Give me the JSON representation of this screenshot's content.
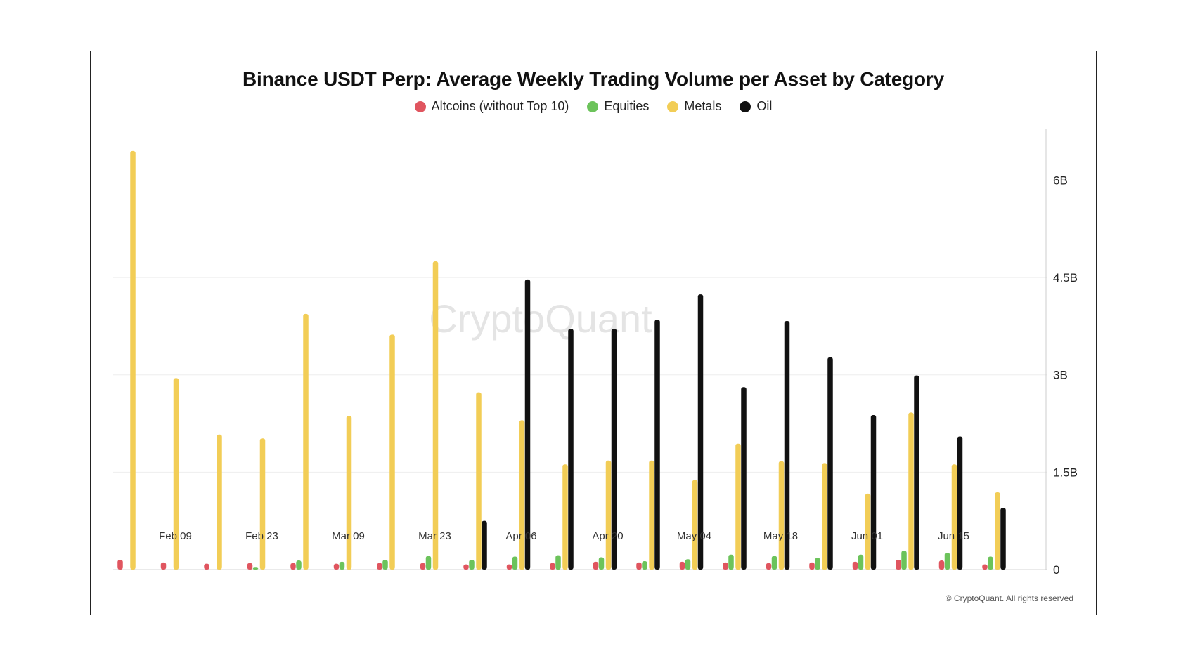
{
  "chart_data": {
    "type": "bar",
    "title": "Binance USDT Perp: Average Weekly Trading Volume per Asset by Category",
    "watermark": "CryptoQuant",
    "copyright": "© CryptoQuant. All rights reserved",
    "ylim": [
      0,
      6600000000
    ],
    "yticks": [
      {
        "value": 0,
        "label": "0"
      },
      {
        "value": 1500000000,
        "label": "1.5B"
      },
      {
        "value": 3000000000,
        "label": "3B"
      },
      {
        "value": 4500000000,
        "label": "4.5B"
      },
      {
        "value": 6000000000,
        "label": "6B"
      }
    ],
    "y_axis_position": "right",
    "grid": true,
    "legend_position": "top-center",
    "x_tick_labels": [
      {
        "index": 1,
        "label": "Feb 09"
      },
      {
        "index": 3,
        "label": "Feb 23"
      },
      {
        "index": 5,
        "label": "Mar 09"
      },
      {
        "index": 7,
        "label": "Mar 23"
      },
      {
        "index": 9,
        "label": "Apr 06"
      },
      {
        "index": 11,
        "label": "Apr 20"
      },
      {
        "index": 13,
        "label": "May 04"
      },
      {
        "index": 15,
        "label": "May 18"
      },
      {
        "index": 17,
        "label": "Jun 01"
      },
      {
        "index": 19,
        "label": "Jun 15"
      }
    ],
    "categories": [
      "",
      "Feb 09",
      "",
      "Feb 23",
      "",
      "Mar 09",
      "",
      "Mar 23",
      "",
      "Apr 06",
      "",
      "Apr 20",
      "",
      "May 04",
      "",
      "May 18",
      "",
      "Jun 01",
      "",
      "Jun 15",
      ""
    ],
    "series": [
      {
        "name": "Altcoins (without Top 10)",
        "color": "#e0555f",
        "values": [
          150000000,
          110000000,
          90000000,
          100000000,
          100000000,
          90000000,
          100000000,
          100000000,
          80000000,
          80000000,
          100000000,
          120000000,
          110000000,
          120000000,
          110000000,
          100000000,
          110000000,
          120000000,
          150000000,
          140000000,
          80000000
        ]
      },
      {
        "name": "Equities",
        "color": "#6cc35b",
        "values": [
          0,
          0,
          0,
          30000000,
          140000000,
          120000000,
          150000000,
          210000000,
          150000000,
          200000000,
          220000000,
          190000000,
          130000000,
          160000000,
          230000000,
          210000000,
          180000000,
          230000000,
          290000000,
          260000000,
          200000000
        ]
      },
      {
        "name": "Metals",
        "color": "#f2cd56",
        "values": [
          6450000000,
          2950000000,
          2080000000,
          2020000000,
          3940000000,
          2370000000,
          3620000000,
          4750000000,
          2730000000,
          2300000000,
          1620000000,
          1680000000,
          1680000000,
          1380000000,
          1940000000,
          1670000000,
          1640000000,
          1170000000,
          2420000000,
          1620000000,
          1190000000
        ]
      },
      {
        "name": "Oil",
        "color": "#111111",
        "values": [
          0,
          0,
          0,
          0,
          0,
          0,
          0,
          0,
          750000000,
          4470000000,
          3710000000,
          3710000000,
          3850000000,
          4240000000,
          2810000000,
          3830000000,
          3270000000,
          2380000000,
          2990000000,
          2050000000,
          950000000
        ]
      }
    ]
  }
}
